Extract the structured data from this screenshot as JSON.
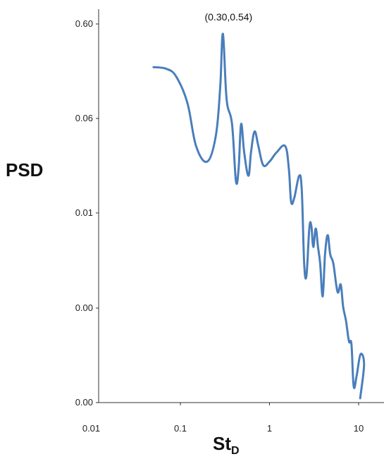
{
  "chart_data": {
    "type": "line",
    "x_scale": "log",
    "y_scale": "log",
    "xlabel_main": "St",
    "xlabel_sub": "D",
    "ylabel": "PSD",
    "xlim": [
      0.01,
      13
    ],
    "grid": false,
    "x_ticks": [
      {
        "value": 0.01,
        "label": "0.01"
      },
      {
        "value": 0.1,
        "label": "0.1"
      },
      {
        "value": 1,
        "label": "1"
      },
      {
        "value": 10,
        "label": "10"
      }
    ],
    "y_ticks": [
      {
        "label": "0.60"
      },
      {
        "label": "0.06"
      },
      {
        "label": "0.01"
      },
      {
        "label": "0.00"
      },
      {
        "label": "0.00"
      }
    ],
    "annotation": {
      "text": "(0.30,0.54)",
      "x": 0.3,
      "y": 0.54
    },
    "series": [
      {
        "color": "#4a7ebb",
        "points": [
          [
            0.05,
            0.24
          ],
          [
            0.07,
            0.23
          ],
          [
            0.09,
            0.19
          ],
          [
            0.12,
            0.1
          ],
          [
            0.15,
            0.035
          ],
          [
            0.2,
            0.024
          ],
          [
            0.25,
            0.045
          ],
          [
            0.28,
            0.15
          ],
          [
            0.3,
            0.54
          ],
          [
            0.33,
            0.11
          ],
          [
            0.38,
            0.06
          ],
          [
            0.42,
            0.015
          ],
          [
            0.45,
            0.02
          ],
          [
            0.48,
            0.06
          ],
          [
            0.52,
            0.03
          ],
          [
            0.58,
            0.017
          ],
          [
            0.62,
            0.03
          ],
          [
            0.68,
            0.05
          ],
          [
            0.75,
            0.035
          ],
          [
            0.85,
            0.022
          ],
          [
            1.0,
            0.024
          ],
          [
            1.2,
            0.03
          ],
          [
            1.5,
            0.035
          ],
          [
            1.65,
            0.02
          ],
          [
            1.75,
            0.009
          ],
          [
            1.9,
            0.01
          ],
          [
            2.15,
            0.017
          ],
          [
            2.3,
            0.012
          ],
          [
            2.45,
            0.002
          ],
          [
            2.6,
            0.0015
          ],
          [
            2.8,
            0.0048
          ],
          [
            2.95,
            0.005
          ],
          [
            3.1,
            0.003
          ],
          [
            3.3,
            0.0047
          ],
          [
            3.5,
            0.003
          ],
          [
            3.7,
            0.002
          ],
          [
            3.95,
            0.0009
          ],
          [
            4.2,
            0.0025
          ],
          [
            4.5,
            0.004
          ],
          [
            4.8,
            0.0025
          ],
          [
            5.2,
            0.002
          ],
          [
            5.8,
            0.001
          ],
          [
            6.3,
            0.0012
          ],
          [
            6.7,
            0.0007
          ],
          [
            7.2,
            0.0005
          ],
          [
            7.8,
            0.0003
          ],
          [
            8.3,
            0.00028
          ],
          [
            8.8,
            0.0001
          ],
          [
            9.5,
            0.00013
          ],
          [
            10.5,
            0.00022
          ],
          [
            11.5,
            0.00017
          ],
          [
            10.4,
            7.5e-05
          ]
        ]
      }
    ]
  }
}
